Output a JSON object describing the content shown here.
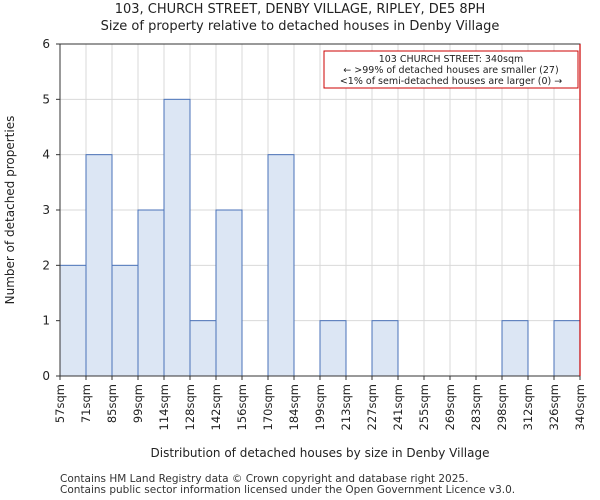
{
  "title": {
    "line1": "103, CHURCH STREET, DENBY VILLAGE, RIPLEY, DE5 8PH",
    "line2": "Size of property relative to detached houses in Denby Village"
  },
  "footer": {
    "line1": "Contains HM Land Registry data © Crown copyright and database right 2025.",
    "line2": "Contains public sector information licensed under the Open Government Licence v3.0."
  },
  "colors": {
    "bar_fill": "#dce6f4",
    "bar_stroke": "#4a72b8",
    "marker": "#cc0000",
    "grid": "#d9d9d9"
  },
  "chart_data": {
    "type": "bar",
    "title": "Size of property relative to detached houses in Denby Village",
    "xlabel": "Distribution of detached houses by size in Denby Village",
    "ylabel": "Number of detached properties",
    "ylim": [
      0,
      6
    ],
    "yticks": [
      0,
      1,
      2,
      3,
      4,
      5,
      6
    ],
    "bin_edges": [
      "57sqm",
      "71sqm",
      "85sqm",
      "99sqm",
      "114sqm",
      "128sqm",
      "142sqm",
      "156sqm",
      "170sqm",
      "184sqm",
      "199sqm",
      "213sqm",
      "227sqm",
      "241sqm",
      "255sqm",
      "269sqm",
      "283sqm",
      "298sqm",
      "312sqm",
      "326sqm",
      "340sqm"
    ],
    "values": [
      2,
      4,
      2,
      3,
      5,
      1,
      3,
      0,
      4,
      0,
      1,
      0,
      1,
      0,
      0,
      0,
      0,
      1,
      0,
      1
    ],
    "marker": {
      "x_label": "340sqm",
      "bin_index": 20
    },
    "annotation": [
      "103 CHURCH STREET: 340sqm",
      "← >99% of detached houses are smaller (27)",
      "<1% of semi-detached houses are larger (0) →"
    ],
    "grid": true
  }
}
